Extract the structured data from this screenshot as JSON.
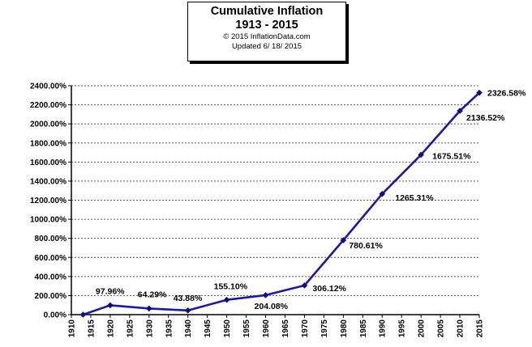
{
  "title_box": {
    "title": "Cumulative Inflation",
    "range": "1913 - 2015",
    "copyright": "© 2015 InflationData.com",
    "updated": "Updated  6/ 18/ 2015"
  },
  "chart_data": {
    "type": "line",
    "title": "Cumulative Inflation 1913 - 2015",
    "xlabel": "",
    "ylabel": "",
    "xlim": [
      1910,
      2015
    ],
    "ylim": [
      0,
      2400
    ],
    "x_ticks": [
      1910,
      1915,
      1920,
      1925,
      1930,
      1935,
      1940,
      1945,
      1950,
      1955,
      1960,
      1965,
      1970,
      1975,
      1980,
      1985,
      1990,
      1995,
      2000,
      2005,
      2010,
      2015
    ],
    "y_ticks": [
      0,
      200,
      400,
      600,
      800,
      1000,
      1200,
      1400,
      1600,
      1800,
      2000,
      2200,
      2400
    ],
    "y_tick_labels": [
      "0.00%",
      "200.00%",
      "400.00%",
      "600.00%",
      "800.00%",
      "1000.00%",
      "1200.00%",
      "1400.00%",
      "1600.00%",
      "1800.00%",
      "2000.00%",
      "2200.00%",
      "2400.00%"
    ],
    "grid": "horizontal dashed",
    "series": [
      {
        "color": "#1a1aa6",
        "points": [
          {
            "x": 1913,
            "y": 0,
            "label": ""
          },
          {
            "x": 1920,
            "y": 97.96,
            "label": "97.96%"
          },
          {
            "x": 1930,
            "y": 64.29,
            "label": "64.29%"
          },
          {
            "x": 1940,
            "y": 43.88,
            "label": "43.88%"
          },
          {
            "x": 1950,
            "y": 155.1,
            "label": "155.10%"
          },
          {
            "x": 1960,
            "y": 204.08,
            "label": "204.08%"
          },
          {
            "x": 1970,
            "y": 306.12,
            "label": "306.12%"
          },
          {
            "x": 1980,
            "y": 780.61,
            "label": "780.61%"
          },
          {
            "x": 1990,
            "y": 1265.31,
            "label": "1265.31%"
          },
          {
            "x": 2000,
            "y": 1675.51,
            "label": "1675.51%"
          },
          {
            "x": 2010,
            "y": 2136.52,
            "label": "2136.52%"
          },
          {
            "x": 2015,
            "y": 2326.58,
            "label": "2326.58%"
          }
        ]
      }
    ]
  }
}
